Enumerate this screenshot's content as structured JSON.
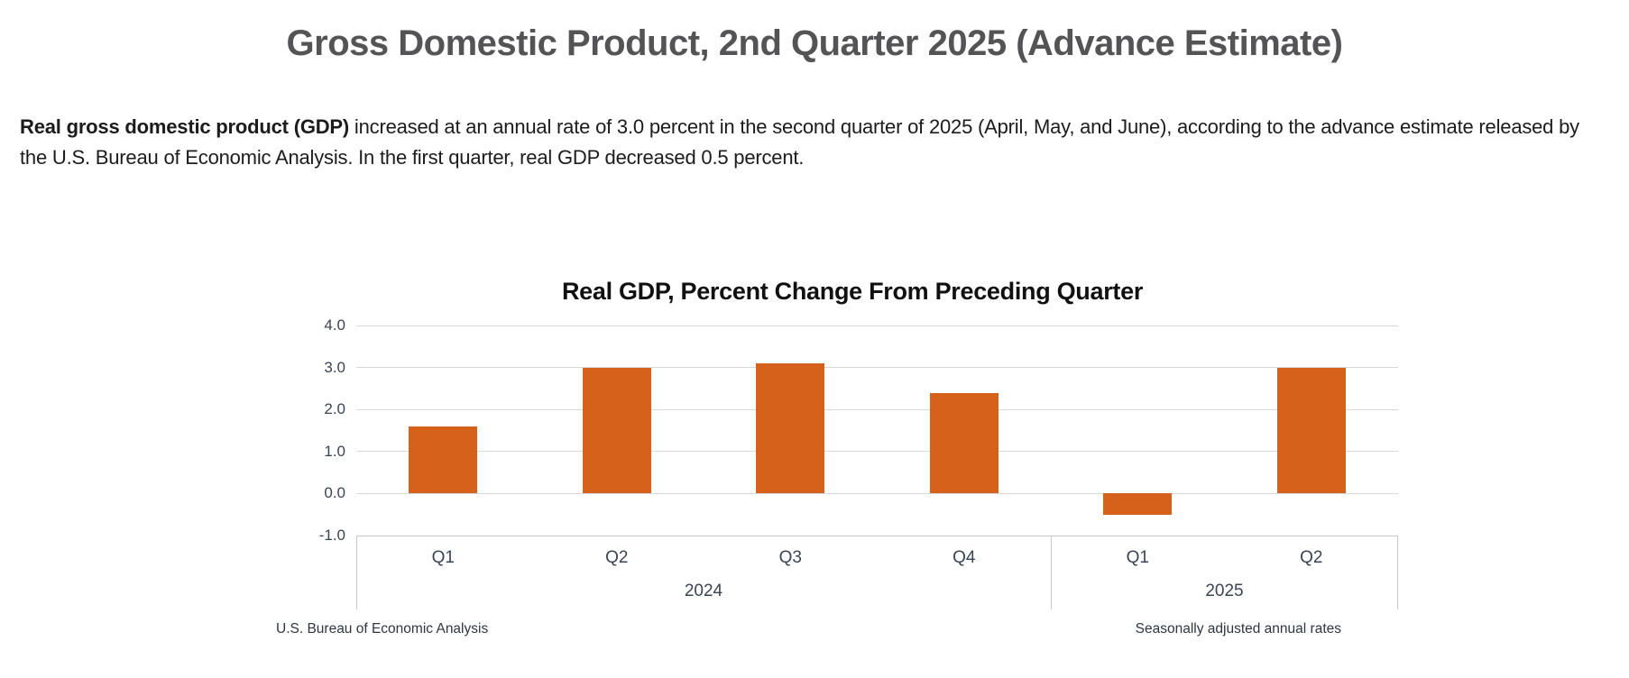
{
  "page": {
    "title": "Gross Domestic Product, 2nd Quarter 2025 (Advance Estimate)",
    "lead_bold": "Real gross domestic product (GDP)",
    "lead_rest": " increased at an annual rate of 3.0 percent in the second quarter of 2025 (April, May, and June), according to the advance estimate released by the U.S. Bureau of Economic Analysis. In the first quarter, real GDP decreased 0.5 percent."
  },
  "chart_data": {
    "type": "bar",
    "title": "Real GDP, Percent Change From Preceding Quarter",
    "categories": [
      "Q1",
      "Q2",
      "Q3",
      "Q4",
      "Q1",
      "Q2"
    ],
    "group_labels": [
      {
        "label": "2024",
        "span": 4
      },
      {
        "label": "2025",
        "span": 2
      }
    ],
    "values": [
      1.6,
      3.0,
      3.1,
      2.4,
      -0.5,
      3.0
    ],
    "ylim": [
      -1.0,
      4.0
    ],
    "yticks": [
      4.0,
      3.0,
      2.0,
      1.0,
      0.0,
      -1.0
    ],
    "ytick_labels": [
      "4.0",
      "3.0",
      "2.0",
      "1.0",
      "0.0",
      "-1.0"
    ],
    "bar_color": "#d5611a",
    "gridline_color": "#d9d9d9",
    "grid": true,
    "legend": "none",
    "source_left": "U.S. Bureau of Economic Analysis",
    "source_right": "Seasonally adjusted annual rates"
  }
}
